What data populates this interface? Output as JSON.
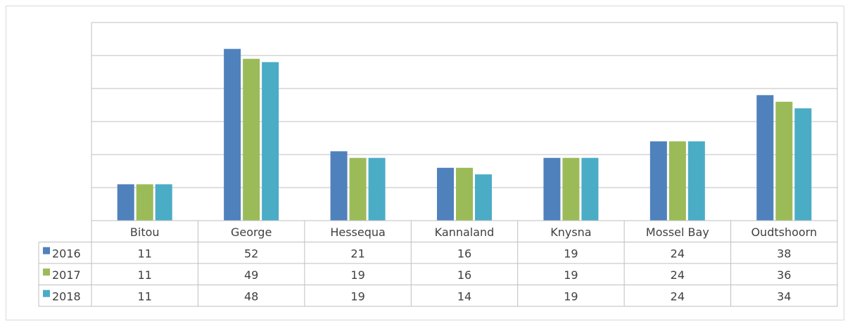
{
  "chart_data": {
    "type": "bar",
    "categories": [
      "Bitou",
      "George",
      "Hessequa",
      "Kannaland",
      "Knysna",
      "Mossel Bay",
      "Oudtshoorn"
    ],
    "series": [
      {
        "name": "2016",
        "color": "#4f81bd",
        "values": [
          11,
          52,
          21,
          16,
          19,
          24,
          38
        ]
      },
      {
        "name": "2017",
        "color": "#9bbb59",
        "values": [
          11,
          49,
          19,
          16,
          19,
          24,
          36
        ]
      },
      {
        "name": "2018",
        "color": "#4bacc6",
        "values": [
          11,
          48,
          19,
          14,
          19,
          24,
          34
        ]
      }
    ],
    "ylim": [
      0,
      60
    ],
    "yticks": [
      0,
      10,
      20,
      30,
      40,
      50,
      60
    ],
    "grid": true,
    "data_table": true
  }
}
